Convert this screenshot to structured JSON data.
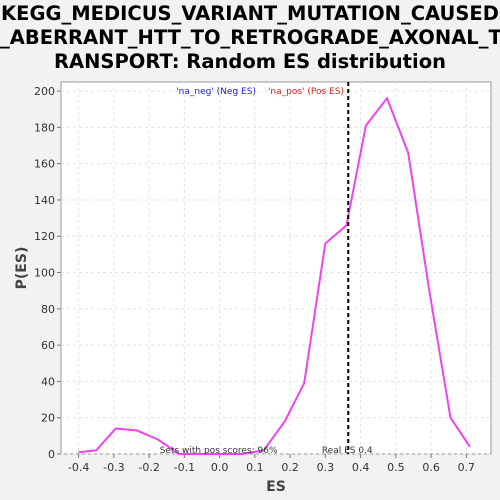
{
  "chart_data": {
    "type": "line",
    "title_lines": [
      "KEGG_MEDICUS_VARIANT_MUTATION_CAUSED",
      "_ABERRANT_HTT_TO_RETROGRADE_AXONAL_T",
      "RANSPORT: Random ES distribution"
    ],
    "xlabel": "ES",
    "ylabel": "P(ES)",
    "xlim": [
      -0.45,
      0.77
    ],
    "ylim": [
      0,
      205
    ],
    "x_ticks": [
      -0.4,
      -0.3,
      -0.2,
      -0.1,
      0.0,
      0.1,
      0.2,
      0.3,
      0.4,
      0.5,
      0.6,
      0.7
    ],
    "x_tick_labels": [
      "-0.4",
      "-0.3",
      "-0.2",
      "-0.1",
      "0.0",
      "0.1",
      "0.2",
      "0.3",
      "0.4",
      "0.5",
      "0.6",
      "0.7"
    ],
    "y_ticks": [
      0,
      20,
      40,
      60,
      80,
      100,
      120,
      140,
      160,
      180,
      200
    ],
    "y_tick_labels": [
      "0",
      "20",
      "40",
      "60",
      "80",
      "100",
      "120",
      "140",
      "160",
      "180",
      "200"
    ],
    "grid": true,
    "series": [
      {
        "color": "#ee44ee",
        "x": [
          -0.4,
          -0.35,
          -0.295,
          -0.235,
          -0.175,
          -0.115,
          -0.055,
          0.005,
          0.065,
          0.125,
          0.185,
          0.24,
          0.3,
          0.36,
          0.415,
          0.475,
          0.535,
          0.595,
          0.655,
          0.71
        ],
        "y": [
          1,
          2,
          14,
          13,
          8,
          0,
          0,
          0,
          0,
          2,
          18,
          39,
          116,
          126,
          181,
          196,
          166,
          90,
          20,
          4
        ]
      }
    ],
    "real_es_line": {
      "x": 0.365,
      "label": "Real ES 0.4"
    },
    "annotations": {
      "neg_label": "'na_neg' (Neg ES)",
      "pos_label": "'na_pos' (Pos ES)",
      "sets_label": "Sets with pos scores: 96%"
    },
    "colors": {
      "neg": "#2222cc",
      "pos": "#cc2222",
      "line": "#ee44ee"
    }
  }
}
